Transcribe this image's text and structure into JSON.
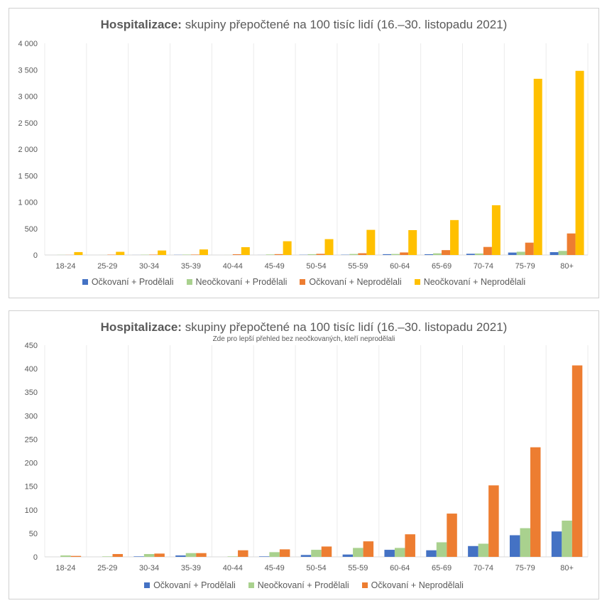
{
  "chart_data": [
    {
      "type": "bar",
      "title_bold": "Hospitalizace:",
      "title_rest": " skupiny přepočtené na 100 tisíc lidí (16.–30. listopadu 2021)",
      "subtitle": "",
      "ylim": [
        0,
        4000
      ],
      "yticks": [
        0,
        500,
        1000,
        1500,
        2000,
        2500,
        3000,
        3500,
        4000
      ],
      "ytick_labels": [
        "0",
        "500",
        "1 000",
        "1 500",
        "2 000",
        "2 500",
        "3 000",
        "3 500",
        "4 000"
      ],
      "categories": [
        "18-24",
        "25-29",
        "30-34",
        "35-39",
        "40-44",
        "45-49",
        "50-54",
        "55-59",
        "60-64",
        "65-69",
        "70-74",
        "75-79",
        "80+"
      ],
      "series": [
        {
          "name": "Očkovaní + Prodělali",
          "color": "#4472c4",
          "values": [
            0,
            0,
            1,
            3,
            0,
            1,
            4,
            5,
            15,
            14,
            23,
            46,
            54
          ]
        },
        {
          "name": "Neočkovaní + Prodělali",
          "color": "#a9d18e",
          "values": [
            3,
            1,
            6,
            8,
            1,
            10,
            15,
            19,
            19,
            31,
            28,
            61,
            77
          ]
        },
        {
          "name": "Očkovaní + Neprodělali",
          "color": "#ed7d31",
          "values": [
            2,
            6,
            7,
            8,
            14,
            16,
            22,
            33,
            48,
            92,
            152,
            233,
            407
          ]
        },
        {
          "name": "Neočkovaní + Neprodělali",
          "color": "#ffc000",
          "values": [
            55,
            60,
            85,
            105,
            148,
            260,
            300,
            475,
            470,
            660,
            940,
            3330,
            3480
          ]
        }
      ]
    },
    {
      "type": "bar",
      "title_bold": "Hospitalizace:",
      "title_rest": " skupiny přepočtené na 100 tisíc lidí (16.–30. listopadu 2021)",
      "subtitle": "Zde pro lepší přehled bez neočkovaných, kteří neprodělali",
      "ylim": [
        0,
        450
      ],
      "yticks": [
        0,
        50,
        100,
        150,
        200,
        250,
        300,
        350,
        400,
        450
      ],
      "ytick_labels": [
        "0",
        "50",
        "100",
        "150",
        "200",
        "250",
        "300",
        "350",
        "400",
        "450"
      ],
      "categories": [
        "18-24",
        "25-29",
        "30-34",
        "35-39",
        "40-44",
        "45-49",
        "50-54",
        "55-59",
        "60-64",
        "65-69",
        "70-74",
        "75-79",
        "80+"
      ],
      "series": [
        {
          "name": "Očkovaní + Prodělali",
          "color": "#4472c4",
          "values": [
            0,
            0,
            1,
            3,
            0,
            1,
            4,
            5,
            15,
            14,
            23,
            46,
            54
          ]
        },
        {
          "name": "Neočkovaní + Prodělali",
          "color": "#a9d18e",
          "values": [
            3,
            1,
            6,
            8,
            1,
            10,
            15,
            19,
            19,
            31,
            28,
            61,
            77
          ]
        },
        {
          "name": "Očkovaní + Neprodělali",
          "color": "#ed7d31",
          "values": [
            2,
            6,
            7,
            8,
            14,
            16,
            22,
            33,
            48,
            92,
            152,
            233,
            407
          ]
        }
      ]
    }
  ]
}
